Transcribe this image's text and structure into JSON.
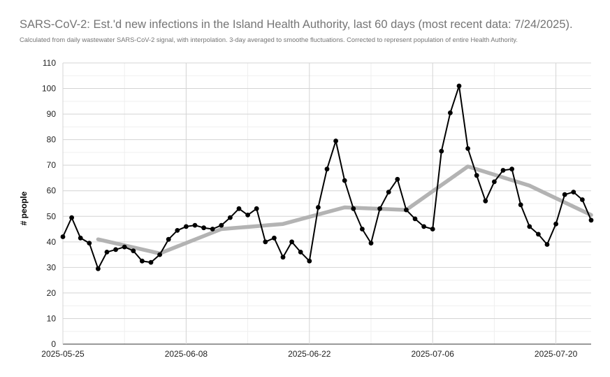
{
  "chart_data": {
    "type": "line",
    "title": "SARS-CoV-2: Est.'d new infections in the Island Health Authority, last 60 days (most recent data: 7/24/2025).",
    "subtitle": "Calculated from daily wastewater SARS-CoV-2 signal, with interpolation. 3-day averaged to smoothe fluctuations. Corrected to represent population of entire Health Authority.",
    "xlabel": "",
    "ylabel": "# people",
    "ylim": [
      0,
      110
    ],
    "yticks": [
      0,
      10,
      20,
      30,
      40,
      50,
      60,
      70,
      80,
      90,
      100,
      110
    ],
    "x_start": "2025-05-25",
    "x_end": "2025-07-24",
    "xtick_labels": [
      "2025-05-25",
      "2025-06-08",
      "2025-06-22",
      "2025-07-06",
      "2025-07-20"
    ],
    "grid": true,
    "series": [
      {
        "color": "#000000",
        "marker": "circle",
        "points": [
          [
            "2025-05-25",
            42
          ],
          [
            "2025-05-26",
            49.5
          ],
          [
            "2025-05-27",
            41.5
          ],
          [
            "2025-05-28",
            39.5
          ],
          [
            "2025-05-29",
            29.5
          ],
          [
            "2025-05-30",
            36
          ],
          [
            "2025-05-31",
            37
          ],
          [
            "2025-06-01",
            38
          ],
          [
            "2025-06-02",
            36.5
          ],
          [
            "2025-06-03",
            32.5
          ],
          [
            "2025-06-04",
            32
          ],
          [
            "2025-06-05",
            35
          ],
          [
            "2025-06-06",
            41
          ],
          [
            "2025-06-07",
            44.5
          ],
          [
            "2025-06-08",
            46
          ],
          [
            "2025-06-09",
            46.5
          ],
          [
            "2025-06-10",
            45.5
          ],
          [
            "2025-06-11",
            45
          ],
          [
            "2025-06-12",
            46.5
          ],
          [
            "2025-06-13",
            49.5
          ],
          [
            "2025-06-14",
            53
          ],
          [
            "2025-06-15",
            50.5
          ],
          [
            "2025-06-16",
            53
          ],
          [
            "2025-06-17",
            40
          ],
          [
            "2025-06-18",
            41.5
          ],
          [
            "2025-06-19",
            34
          ],
          [
            "2025-06-20",
            40
          ],
          [
            "2025-06-21",
            36
          ],
          [
            "2025-06-22",
            32.5
          ],
          [
            "2025-06-23",
            53.5
          ],
          [
            "2025-06-24",
            68.5
          ],
          [
            "2025-06-25",
            79.5
          ],
          [
            "2025-06-26",
            64
          ],
          [
            "2025-06-27",
            53
          ],
          [
            "2025-06-28",
            45
          ],
          [
            "2025-06-29",
            39.5
          ],
          [
            "2025-06-30",
            53
          ],
          [
            "2025-07-01",
            59.5
          ],
          [
            "2025-07-02",
            64.5
          ],
          [
            "2025-07-03",
            52.5
          ],
          [
            "2025-07-04",
            49
          ],
          [
            "2025-07-05",
            46
          ],
          [
            "2025-07-06",
            45
          ],
          [
            "2025-07-07",
            75.5
          ],
          [
            "2025-07-08",
            90.5
          ],
          [
            "2025-07-09",
            101
          ],
          [
            "2025-07-10",
            76.5
          ],
          [
            "2025-07-11",
            66
          ],
          [
            "2025-07-12",
            56
          ],
          [
            "2025-07-13",
            63.5
          ],
          [
            "2025-07-14",
            68
          ],
          [
            "2025-07-15",
            68.5
          ],
          [
            "2025-07-16",
            54.5
          ],
          [
            "2025-07-17",
            46
          ],
          [
            "2025-07-18",
            43
          ],
          [
            "2025-07-19",
            39
          ],
          [
            "2025-07-20",
            47
          ],
          [
            "2025-07-21",
            58.5
          ],
          [
            "2025-07-22",
            59.5
          ],
          [
            "2025-07-23",
            56.5
          ],
          [
            "2025-07-24",
            48.5
          ]
        ]
      },
      {
        "color": "#b3b3b3",
        "marker": "none",
        "points": [
          [
            "2025-05-29",
            41
          ],
          [
            "2025-06-05",
            35.5
          ],
          [
            "2025-06-12",
            45
          ],
          [
            "2025-06-19",
            47
          ],
          [
            "2025-06-26",
            53.5
          ],
          [
            "2025-07-03",
            52.5
          ],
          [
            "2025-07-10",
            69.5
          ],
          [
            "2025-07-17",
            62
          ],
          [
            "2025-07-24",
            50.5
          ]
        ]
      }
    ]
  }
}
